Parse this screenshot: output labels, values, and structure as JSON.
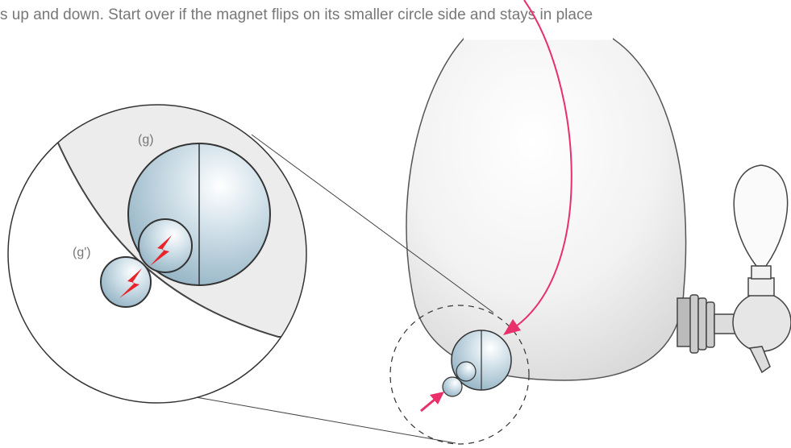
{
  "instruction": "s up and down. Start over if the magnet flips on its smaller circle side and stays in place",
  "labels": {
    "large_magnet": "(g)",
    "small_magnet": "(g')"
  }
}
